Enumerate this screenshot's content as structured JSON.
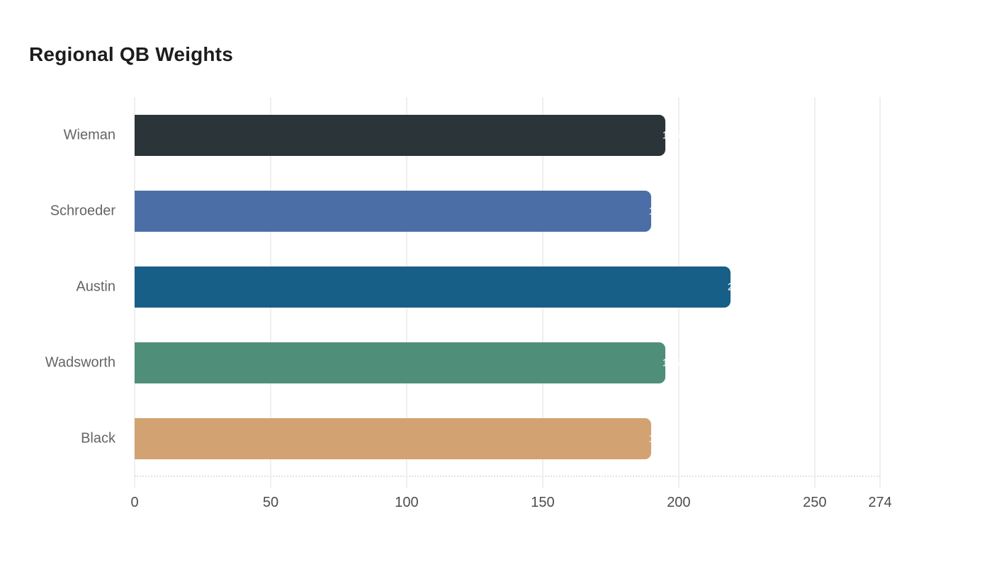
{
  "title": "Regional QB Weights",
  "chart_data": {
    "type": "bar",
    "orientation": "horizontal",
    "title": "Regional QB Weights",
    "xlabel": "",
    "ylabel": "",
    "categories": [
      "Wieman",
      "Schroeder",
      "Austin",
      "Wadsworth",
      "Black"
    ],
    "values": [
      195,
      190,
      219,
      195,
      190
    ],
    "bar_colors": [
      "#2b3438",
      "#4b6ea6",
      "#185f88",
      "#4f8f7a",
      "#d2a273"
    ],
    "xlim": [
      0,
      274
    ],
    "x_ticks": [
      0,
      50,
      100,
      150,
      200,
      250,
      274
    ],
    "grid": "vertical",
    "legend": "none",
    "value_labels": "white, at bar end, mostly clipped outside bar",
    "colors": {
      "background": "#ffffff",
      "title": "#1d1d1d",
      "gridline": "#efefef",
      "baseline": "#e3e3e3",
      "tick_label": "#4c4c4c",
      "category_label": "#646464",
      "value_label": "#ffffff"
    }
  }
}
